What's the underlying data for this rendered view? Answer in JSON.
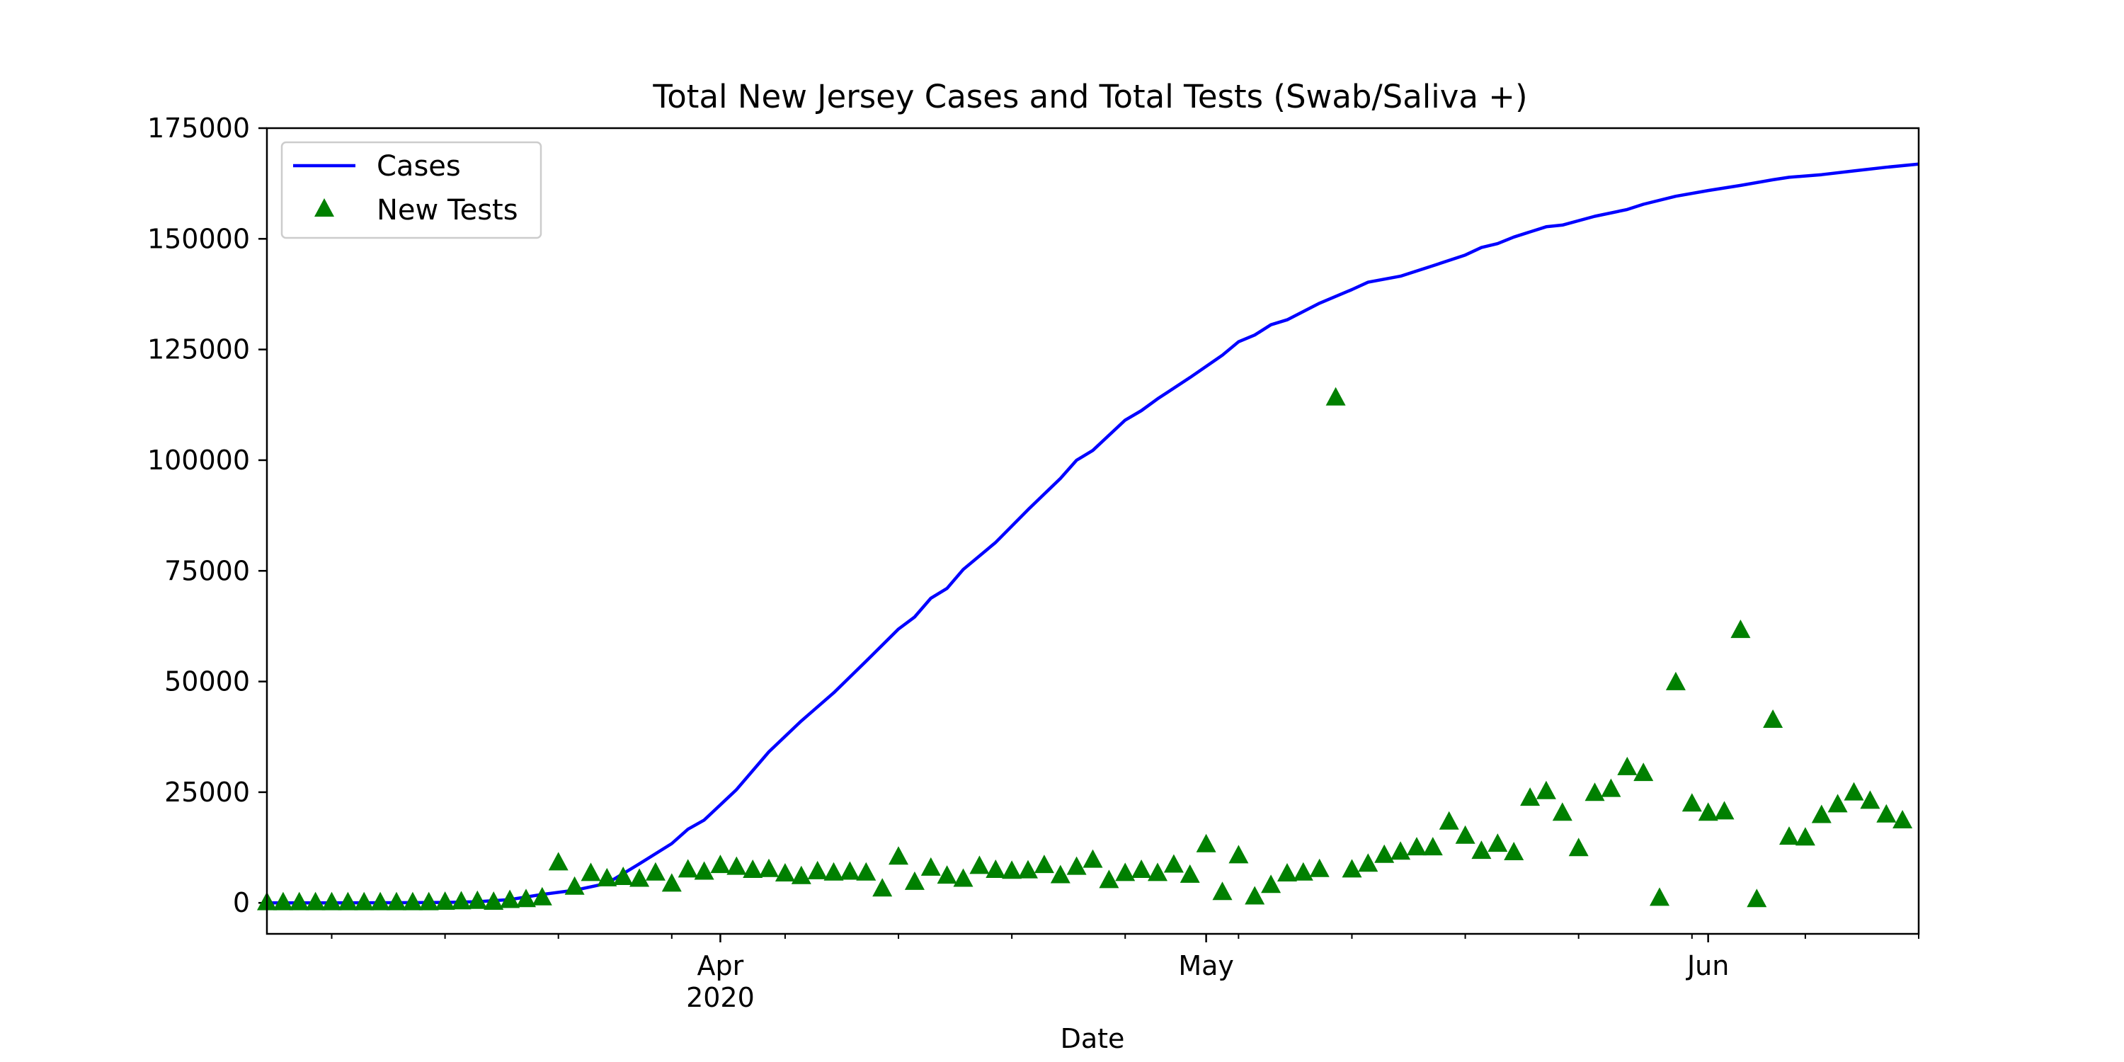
{
  "chart_data": {
    "type": "line",
    "title": "Total New Jersey Cases and Total Tests (Swab/Saliva +)",
    "xlabel": "Date",
    "ylabel": "",
    "x_axis": {
      "type": "date",
      "range": [
        "2020-03-04",
        "2020-06-14"
      ],
      "major_ticks": [
        {
          "date": "2020-04-01",
          "label": "Apr",
          "sublabel": "2020"
        },
        {
          "date": "2020-05-01",
          "label": "May",
          "sublabel": ""
        },
        {
          "date": "2020-06-01",
          "label": "Jun",
          "sublabel": ""
        }
      ],
      "minor_tick_dates": [
        "2020-03-08",
        "2020-03-15",
        "2020-03-22",
        "2020-03-29",
        "2020-04-05",
        "2020-04-12",
        "2020-04-19",
        "2020-04-26",
        "2020-05-03",
        "2020-05-10",
        "2020-05-17",
        "2020-05-24",
        "2020-05-31",
        "2020-06-07",
        "2020-06-14"
      ]
    },
    "ylim": [
      -7000,
      175000
    ],
    "y_ticks": [
      0,
      25000,
      50000,
      75000,
      100000,
      125000,
      150000,
      175000
    ],
    "y_tick_labels": [
      "0",
      "25000",
      "50000",
      "75000",
      "100000",
      "125000",
      "150000",
      "175000"
    ],
    "legend": {
      "position": "top-left"
    },
    "grid": false,
    "series": [
      {
        "name": "Cases",
        "kind": "line",
        "color": "#0000ff",
        "points": [
          [
            "2020-03-04",
            0
          ],
          [
            "2020-03-08",
            6
          ],
          [
            "2020-03-12",
            29
          ],
          [
            "2020-03-15",
            98
          ],
          [
            "2020-03-17",
            267
          ],
          [
            "2020-03-19",
            742
          ],
          [
            "2020-03-21",
            1914
          ],
          [
            "2020-03-23",
            2844
          ],
          [
            "2020-03-25",
            4402
          ],
          [
            "2020-03-27",
            8825
          ],
          [
            "2020-03-29",
            13386
          ],
          [
            "2020-03-30",
            16636
          ],
          [
            "2020-03-31",
            18696
          ],
          [
            "2020-04-02",
            25590
          ],
          [
            "2020-04-04",
            34124
          ],
          [
            "2020-04-06",
            41090
          ],
          [
            "2020-04-08",
            47437
          ],
          [
            "2020-04-10",
            54588
          ],
          [
            "2020-04-12",
            61850
          ],
          [
            "2020-04-13",
            64584
          ],
          [
            "2020-04-14",
            68824
          ],
          [
            "2020-04-15",
            71030
          ],
          [
            "2020-04-16",
            75317
          ],
          [
            "2020-04-18",
            81420
          ],
          [
            "2020-04-20",
            88806
          ],
          [
            "2020-04-22",
            95865
          ],
          [
            "2020-04-23",
            99989
          ],
          [
            "2020-04-24",
            102196
          ],
          [
            "2020-04-26",
            109038
          ],
          [
            "2020-04-27",
            111188
          ],
          [
            "2020-04-28",
            113856
          ],
          [
            "2020-04-30",
            118652
          ],
          [
            "2020-05-02",
            123717
          ],
          [
            "2020-05-03",
            126744
          ],
          [
            "2020-05-04",
            128269
          ],
          [
            "2020-05-05",
            130593
          ],
          [
            "2020-05-06",
            131705
          ],
          [
            "2020-05-08",
            135454
          ],
          [
            "2020-05-10",
            138532
          ],
          [
            "2020-05-11",
            140206
          ],
          [
            "2020-05-13",
            141560
          ],
          [
            "2020-05-15",
            143905
          ],
          [
            "2020-05-17",
            146334
          ],
          [
            "2020-05-18",
            148039
          ],
          [
            "2020-05-19",
            148922
          ],
          [
            "2020-05-20",
            150399
          ],
          [
            "2020-05-22",
            152719
          ],
          [
            "2020-05-23",
            153104
          ],
          [
            "2020-05-25",
            155092
          ],
          [
            "2020-05-27",
            156628
          ],
          [
            "2020-05-28",
            157815
          ],
          [
            "2020-05-30",
            159608
          ],
          [
            "2020-06-01",
            160918
          ],
          [
            "2020-06-03",
            162068
          ],
          [
            "2020-06-05",
            163336
          ],
          [
            "2020-06-06",
            163893
          ],
          [
            "2020-06-08",
            164497
          ],
          [
            "2020-06-10",
            165346
          ],
          [
            "2020-06-12",
            166164
          ],
          [
            "2020-06-14",
            166881
          ]
        ]
      },
      {
        "name": "New Tests",
        "kind": "scatter",
        "marker": "triangle",
        "color": "#008000",
        "points": [
          [
            "2020-03-04",
            0
          ],
          [
            "2020-03-05",
            0
          ],
          [
            "2020-03-06",
            0
          ],
          [
            "2020-03-07",
            0
          ],
          [
            "2020-03-08",
            0
          ],
          [
            "2020-03-09",
            0
          ],
          [
            "2020-03-10",
            0
          ],
          [
            "2020-03-11",
            0
          ],
          [
            "2020-03-12",
            0
          ],
          [
            "2020-03-13",
            0
          ],
          [
            "2020-03-14",
            0
          ],
          [
            "2020-03-15",
            100
          ],
          [
            "2020-03-16",
            200
          ],
          [
            "2020-03-17",
            300
          ],
          [
            "2020-03-18",
            100
          ],
          [
            "2020-03-19",
            500
          ],
          [
            "2020-03-20",
            700
          ],
          [
            "2020-03-21",
            1100
          ],
          [
            "2020-03-22",
            9000
          ],
          [
            "2020-03-23",
            3500
          ],
          [
            "2020-03-24",
            6600
          ],
          [
            "2020-03-25",
            5400
          ],
          [
            "2020-03-26",
            5700
          ],
          [
            "2020-03-27",
            5300
          ],
          [
            "2020-03-28",
            6700
          ],
          [
            "2020-03-29",
            4200
          ],
          [
            "2020-03-30",
            7400
          ],
          [
            "2020-03-31",
            6900
          ],
          [
            "2020-04-01",
            8400
          ],
          [
            "2020-04-02",
            8000
          ],
          [
            "2020-04-03",
            7300
          ],
          [
            "2020-04-04",
            7500
          ],
          [
            "2020-04-05",
            6500
          ],
          [
            "2020-04-06",
            5900
          ],
          [
            "2020-04-07",
            7000
          ],
          [
            "2020-04-08",
            6700
          ],
          [
            "2020-04-09",
            6900
          ],
          [
            "2020-04-10",
            6700
          ],
          [
            "2020-04-11",
            3100
          ],
          [
            "2020-04-12",
            10300
          ],
          [
            "2020-04-13",
            4600
          ],
          [
            "2020-04-14",
            7800
          ],
          [
            "2020-04-15",
            6000
          ],
          [
            "2020-04-16",
            5300
          ],
          [
            "2020-04-17",
            8200
          ],
          [
            "2020-04-18",
            7300
          ],
          [
            "2020-04-19",
            7100
          ],
          [
            "2020-04-20",
            7200
          ],
          [
            "2020-04-21",
            8400
          ],
          [
            "2020-04-22",
            6100
          ],
          [
            "2020-04-23",
            8000
          ],
          [
            "2020-04-24",
            9600
          ],
          [
            "2020-04-25",
            5000
          ],
          [
            "2020-04-26",
            6600
          ],
          [
            "2020-04-27",
            7300
          ],
          [
            "2020-04-28",
            6600
          ],
          [
            "2020-04-29",
            8500
          ],
          [
            "2020-04-30",
            6200
          ],
          [
            "2020-05-01",
            13100
          ],
          [
            "2020-05-02",
            2300
          ],
          [
            "2020-05-03",
            10600
          ],
          [
            "2020-05-04",
            1300
          ],
          [
            "2020-05-05",
            3900
          ],
          [
            "2020-05-06",
            6500
          ],
          [
            "2020-05-07",
            6700
          ],
          [
            "2020-05-08",
            7500
          ],
          [
            "2020-05-09",
            114000
          ],
          [
            "2020-05-10",
            7400
          ],
          [
            "2020-05-11",
            8700
          ],
          [
            "2020-05-12",
            10700
          ],
          [
            "2020-05-13",
            11400
          ],
          [
            "2020-05-14",
            12400
          ],
          [
            "2020-05-15",
            12400
          ],
          [
            "2020-05-16",
            18200
          ],
          [
            "2020-05-17",
            15000
          ],
          [
            "2020-05-18",
            11600
          ],
          [
            "2020-05-19",
            13200
          ],
          [
            "2020-05-20",
            11300
          ],
          [
            "2020-05-21",
            23600
          ],
          [
            "2020-05-22",
            25100
          ],
          [
            "2020-05-23",
            20200
          ],
          [
            "2020-05-24",
            12200
          ],
          [
            "2020-05-25",
            24700
          ],
          [
            "2020-05-26",
            25600
          ],
          [
            "2020-05-27",
            30500
          ],
          [
            "2020-05-28",
            29200
          ],
          [
            "2020-05-29",
            1000
          ],
          [
            "2020-05-30",
            49700
          ],
          [
            "2020-05-31",
            22300
          ],
          [
            "2020-06-01",
            20200
          ],
          [
            "2020-06-02",
            20500
          ],
          [
            "2020-06-03",
            61500
          ],
          [
            "2020-06-04",
            700
          ],
          [
            "2020-06-05",
            41200
          ],
          [
            "2020-06-06",
            14800
          ],
          [
            "2020-06-07",
            14600
          ],
          [
            "2020-06-08",
            19700
          ],
          [
            "2020-06-09",
            22100
          ],
          [
            "2020-06-10",
            24800
          ],
          [
            "2020-06-11",
            22900
          ],
          [
            "2020-06-12",
            19800
          ],
          [
            "2020-06-13",
            18500
          ]
        ]
      }
    ]
  }
}
